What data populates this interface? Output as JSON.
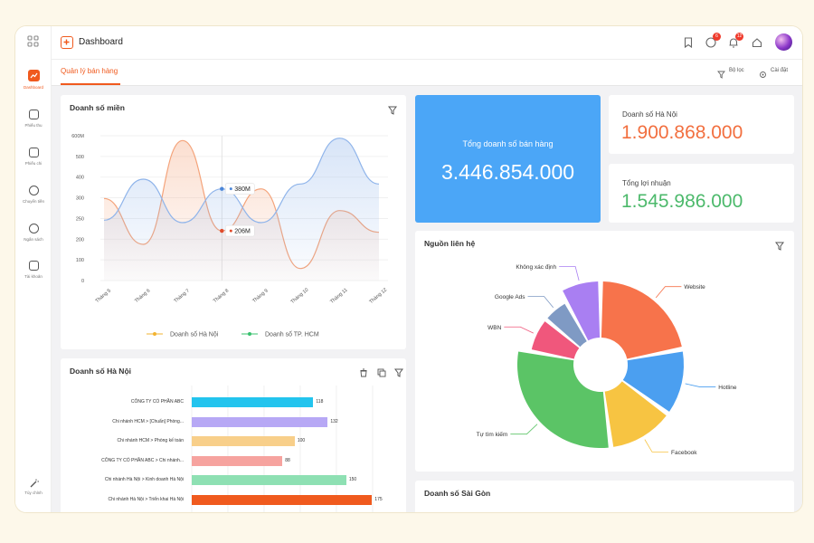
{
  "header": {
    "title": "Dashboard"
  },
  "tab": {
    "label": "Quản lý bán hàng",
    "filter_label": "Bộ lọc",
    "settings_label": "Cài đặt"
  },
  "notifications": {
    "chat_count": "6",
    "bell_count": "12"
  },
  "sidebar": {
    "items": [
      {
        "label": "Dashboard",
        "icon": "chart-icon",
        "active": true
      },
      {
        "label": "Phiếu thu",
        "icon": "receipt-icon"
      },
      {
        "label": "Phiếu chi",
        "icon": "payment-icon"
      },
      {
        "label": "Chuyển tiền",
        "icon": "transfer-icon"
      },
      {
        "label": "Ngân sách",
        "icon": "budget-icon"
      },
      {
        "label": "Tài khoản",
        "icon": "wallet-icon"
      },
      {
        "label": "Tùy chỉnh",
        "icon": "magic-wand-icon"
      }
    ]
  },
  "region_chart": {
    "title": "Doanh số miền",
    "chart_data": {
      "type": "line",
      "categories": [
        "Tháng 5",
        "Tháng 6",
        "Tháng 7",
        "Tháng 8",
        "Tháng 9",
        "Tháng 10",
        "Tháng 11",
        "Tháng 12"
      ],
      "y_ticks": [
        "0",
        "100",
        "200",
        "250",
        "300",
        "400",
        "500",
        "600M"
      ],
      "series": [
        {
          "name": "Doanh số Hà Nội",
          "color": "#f4a37a",
          "values": [
            340,
            150,
            580,
            206,
            380,
            50,
            290,
            200
          ]
        },
        {
          "name": "Doanh số TP. HCM",
          "color": "#8fb4ea",
          "values": [
            250,
            420,
            240,
            380,
            240,
            400,
            590,
            400
          ]
        }
      ],
      "tooltips": [
        {
          "label": "380M"
        },
        {
          "label": "206M"
        }
      ],
      "legend_position": "bottom"
    }
  },
  "kpi": {
    "total_label": "Tổng doanh số bán hàng",
    "total_value": "3.446.854.000",
    "hanoi_label": "Doanh số Hà Nội",
    "hanoi_value": "1.900.868.000",
    "profit_label": "Tổng lợi nhuận",
    "profit_value": "1.545.986.000"
  },
  "source_chart": {
    "title": "Nguồn liên hệ",
    "chart_data": {
      "type": "pie",
      "slices": [
        {
          "label": "Website",
          "value": 22,
          "color": "#f7734b"
        },
        {
          "label": "Hotline",
          "value": 13,
          "color": "#4b9ff0"
        },
        {
          "label": "Facebook",
          "value": 13,
          "color": "#f7c442"
        },
        {
          "label": "Tự tìm kiếm",
          "value": 30,
          "color": "#5bc466"
        },
        {
          "label": "WBN",
          "value": 8,
          "color": "#f0577c"
        },
        {
          "label": "Google Ads",
          "value": 6,
          "color": "#7f9ac4"
        },
        {
          "label": "Không xác định",
          "value": 8,
          "color": "#a97ff2"
        }
      ]
    }
  },
  "hanoi_chart": {
    "title": "Doanh số Hà Nội",
    "chart_data": {
      "type": "bar",
      "max": 180,
      "rows": [
        {
          "label": "CÔNG TY CỔ PHẦN ABC",
          "value": 118,
          "color": "#23c4ee"
        },
        {
          "label": "Chi nhánh HCM > [Chuẩn] Phòng...",
          "value": 132,
          "color": "#b7a8f5"
        },
        {
          "label": "Chi nhánh HCM > Phòng kế toán",
          "value": 100,
          "color": "#f8cf8a"
        },
        {
          "label": "CÔNG TY CỔ PHẦN ABC > Chi nhánh...",
          "value": 88,
          "color": "#f6a39f"
        },
        {
          "label": "Chi nhánh Hà Nội > Kinh doanh Hà Nội",
          "value": 150,
          "color": "#8ee0b3"
        },
        {
          "label": "Chi nhánh Hà Nội > Triển khai Hà Nội",
          "value": 175,
          "color": "#f05a1e"
        }
      ]
    }
  },
  "saigon_chart": {
    "title": "Doanh số Sài Gòn"
  }
}
